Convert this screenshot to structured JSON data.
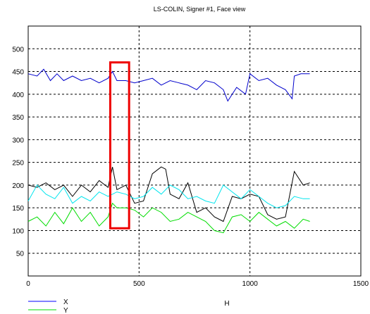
{
  "chart_data": {
    "type": "line",
    "title": "LS-COLIN, Signer #1, Face view",
    "xlabel": "H",
    "ylabel": "",
    "xlim": [
      0,
      1500
    ],
    "ylim": [
      0,
      550
    ],
    "grid": true,
    "legend_position": "bottom-left",
    "x_ticks": [
      0,
      500,
      1000,
      1500
    ],
    "y_ticks": [
      50,
      100,
      150,
      200,
      250,
      300,
      350,
      400,
      450,
      500
    ],
    "series": [
      {
        "name": "X",
        "color": "#000000",
        "x": [
          0,
          40,
          80,
          120,
          160,
          200,
          240,
          280,
          320,
          360,
          380,
          400,
          440,
          480,
          520,
          560,
          600,
          620,
          640,
          680,
          720,
          760,
          800,
          840,
          880,
          920,
          960,
          1000,
          1040,
          1080,
          1120,
          1160,
          1200,
          1240,
          1270
        ],
        "values": [
          200,
          195,
          205,
          190,
          200,
          175,
          200,
          185,
          210,
          195,
          240,
          190,
          200,
          160,
          165,
          225,
          240,
          235,
          180,
          170,
          205,
          140,
          150,
          130,
          120,
          175,
          170,
          180,
          175,
          135,
          125,
          130,
          230,
          200,
          205
        ]
      },
      {
        "name": "Y",
        "color": "#00dd00",
        "x": [
          0,
          40,
          80,
          120,
          160,
          200,
          240,
          280,
          320,
          360,
          380,
          400,
          440,
          480,
          520,
          560,
          600,
          640,
          680,
          720,
          760,
          800,
          840,
          880,
          920,
          960,
          1000,
          1040,
          1080,
          1120,
          1160,
          1200,
          1240,
          1270
        ],
        "values": [
          120,
          130,
          110,
          140,
          115,
          150,
          120,
          140,
          110,
          130,
          160,
          150,
          150,
          145,
          130,
          150,
          140,
          120,
          125,
          140,
          130,
          120,
          100,
          95,
          130,
          135,
          120,
          140,
          125,
          110,
          120,
          105,
          125,
          120
        ]
      },
      {
        "name": "",
        "color": "#00e5ee",
        "x": [
          0,
          40,
          80,
          120,
          160,
          200,
          240,
          280,
          320,
          360,
          380,
          400,
          440,
          480,
          520,
          560,
          600,
          640,
          680,
          720,
          760,
          800,
          840,
          880,
          920,
          960,
          1000,
          1040,
          1080,
          1120,
          1160,
          1200,
          1240,
          1270
        ],
        "values": [
          165,
          200,
          180,
          170,
          195,
          160,
          175,
          165,
          185,
          175,
          180,
          185,
          180,
          170,
          175,
          195,
          180,
          200,
          190,
          170,
          175,
          165,
          160,
          200,
          185,
          170,
          190,
          175,
          160,
          150,
          155,
          175,
          170,
          170
        ]
      },
      {
        "name": "",
        "color": "#0000cc",
        "x": [
          0,
          40,
          70,
          100,
          130,
          160,
          200,
          240,
          280,
          320,
          360,
          380,
          400,
          440,
          480,
          520,
          560,
          600,
          640,
          680,
          720,
          760,
          800,
          840,
          880,
          900,
          940,
          980,
          1000,
          1040,
          1080,
          1120,
          1160,
          1190,
          1200,
          1230,
          1270
        ],
        "values": [
          445,
          440,
          455,
          430,
          445,
          430,
          440,
          430,
          435,
          425,
          435,
          450,
          430,
          430,
          425,
          430,
          435,
          420,
          430,
          425,
          420,
          410,
          430,
          425,
          410,
          385,
          415,
          400,
          445,
          430,
          435,
          420,
          410,
          390,
          440,
          445,
          445
        ]
      }
    ]
  },
  "legend": {
    "x_label": "X",
    "y_label": "Y"
  },
  "annotation": {
    "color": "#ee0000",
    "x_range": [
      370,
      455
    ],
    "y_range": [
      105,
      470
    ]
  }
}
